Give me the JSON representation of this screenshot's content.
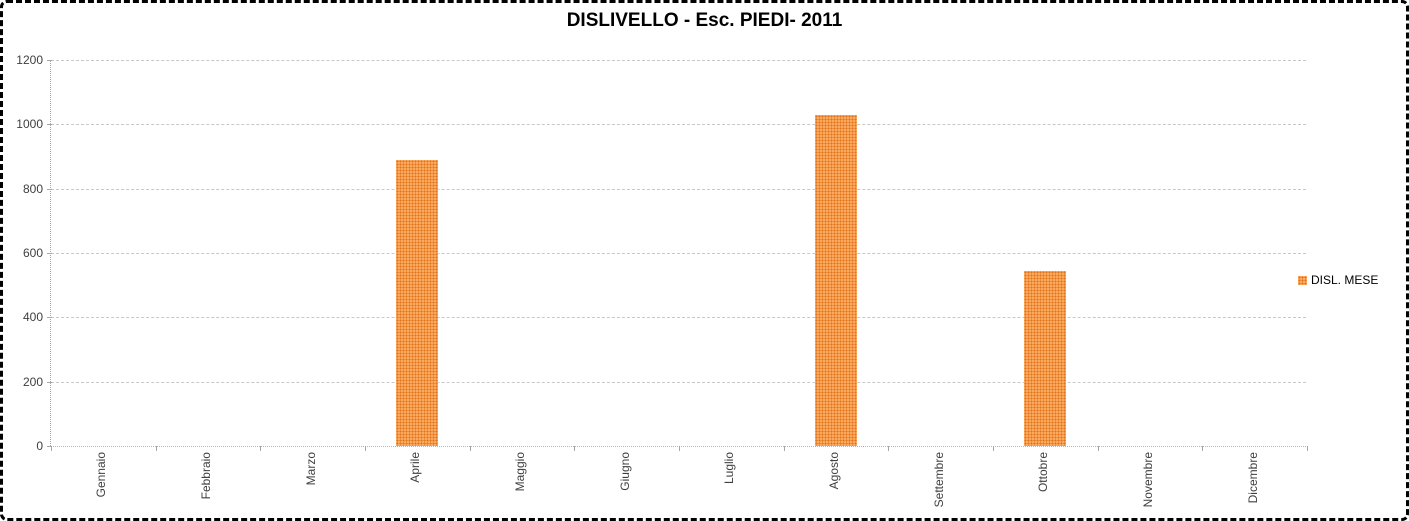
{
  "chart_data": {
    "type": "bar",
    "title": "DISLIVELLO - Esc. PIEDI- 2011",
    "categories": [
      "Gennaio",
      "Febbraio",
      "Marzo",
      "Aprile",
      "Maggio",
      "Giugno",
      "Luglio",
      "Agosto",
      "Settembre",
      "Ottobre",
      "Novembre",
      "Dicembre"
    ],
    "series": [
      {
        "name": "DISL. MESE",
        "values": [
          0,
          0,
          0,
          890,
          0,
          0,
          0,
          1030,
          0,
          545,
          0,
          0
        ]
      }
    ],
    "xlabel": "",
    "ylabel": "",
    "ylim": [
      0,
      1200
    ],
    "ytick_step": 200,
    "ytick_labels": [
      "0",
      "200",
      "400",
      "600",
      "800",
      "1000",
      "1200"
    ],
    "grid": true,
    "legend_position": "right"
  },
  "legend": {
    "label": "DISL. MESE"
  },
  "colors": {
    "bar_fill": "#FBA95E",
    "bar_pattern_dot": "#E2731B",
    "gridline": "#C8C8C8",
    "axis": "#A6A6A6",
    "axis_text": "#3F3F3F",
    "title_text": "#000000",
    "border": "#000000",
    "background": "#FFFFFF"
  }
}
